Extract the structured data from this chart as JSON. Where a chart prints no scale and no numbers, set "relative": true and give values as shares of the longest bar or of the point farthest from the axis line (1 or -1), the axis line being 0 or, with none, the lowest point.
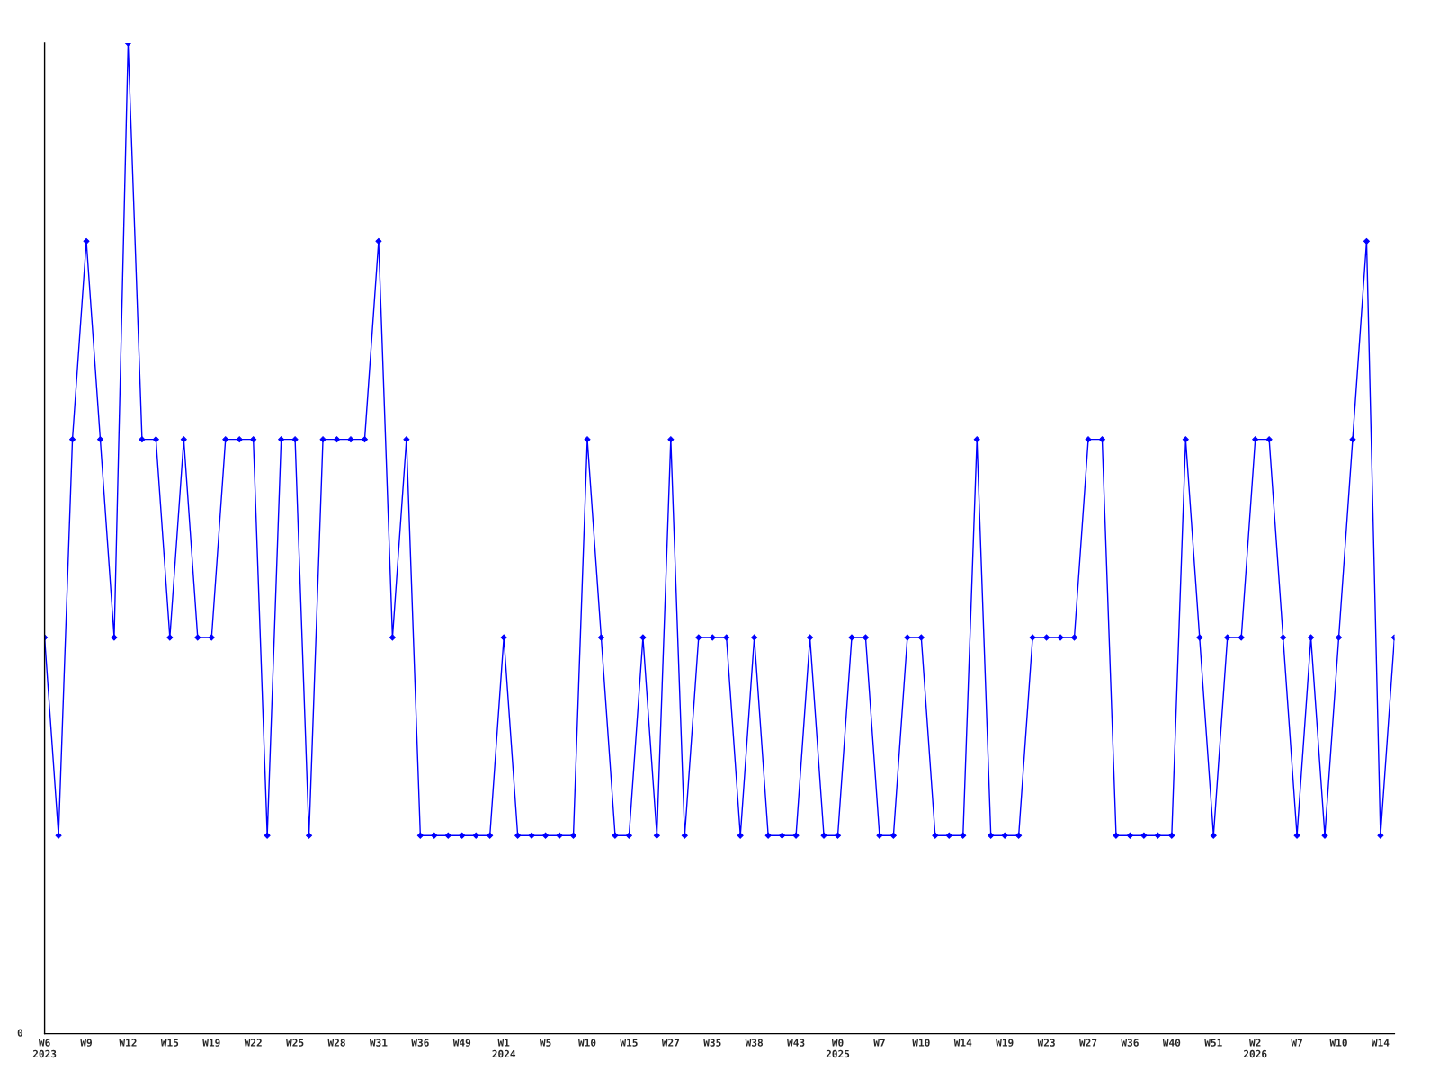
{
  "chart_data": {
    "type": "line",
    "relative": true,
    "categories": [
      "W6\n2023",
      null,
      null,
      "W9",
      null,
      null,
      "W12",
      null,
      null,
      "W15",
      null,
      null,
      "W19",
      null,
      null,
      "W22",
      null,
      null,
      "W25",
      null,
      null,
      "W28",
      null,
      null,
      "W31",
      null,
      null,
      "W36",
      null,
      null,
      "W49",
      null,
      null,
      "W1\n2024",
      null,
      null,
      "W5",
      null,
      null,
      "W10",
      null,
      null,
      "W15",
      null,
      null,
      "W27",
      null,
      null,
      "W35",
      null,
      null,
      "W38",
      null,
      null,
      "W43",
      null,
      null,
      "W0\n2025",
      null,
      null,
      "W7",
      null,
      null,
      "W10",
      null,
      null,
      "W14",
      null,
      null,
      "W19",
      null,
      null,
      "W23",
      null,
      null,
      "W27",
      null,
      null,
      "W36",
      null,
      null,
      "W40",
      null,
      null,
      "W51",
      null,
      null,
      "W2\n2026",
      null,
      null,
      "W7",
      null,
      null,
      "W10",
      null,
      null,
      "W14",
      null
    ],
    "series": [
      {
        "color": "#0000ff",
        "values": [
          0.4,
          0.2,
          0.6,
          0.8,
          0.6,
          0.4,
          1.0,
          0.6,
          0.6,
          0.4,
          0.6,
          0.4,
          0.4,
          0.6,
          0.6,
          0.6,
          0.2,
          0.6,
          0.6,
          0.2,
          0.6,
          0.6,
          0.6,
          0.6,
          0.8,
          0.4,
          0.6,
          0.2,
          0.2,
          0.2,
          0.2,
          0.2,
          0.2,
          0.4,
          0.2,
          0.2,
          0.2,
          0.2,
          0.2,
          0.6,
          0.4,
          0.2,
          0.2,
          0.4,
          0.2,
          0.6,
          0.2,
          0.4,
          0.4,
          0.4,
          0.2,
          0.4,
          0.2,
          0.2,
          0.2,
          0.4,
          0.2,
          0.2,
          0.4,
          0.4,
          0.2,
          0.2,
          0.4,
          0.4,
          0.2,
          0.2,
          0.2,
          0.6,
          0.2,
          0.2,
          0.2,
          0.4,
          0.4,
          0.4,
          0.4,
          0.6,
          0.6,
          0.2,
          0.2,
          0.2,
          0.2,
          0.2,
          0.6,
          0.4,
          0.2,
          0.4,
          0.4,
          0.6,
          0.6,
          0.4,
          0.2,
          0.4,
          0.2,
          0.4,
          0.6,
          0.8,
          0.2,
          0.4
        ]
      }
    ],
    "annotations": [
      "0"
    ],
    "marker": "diamond",
    "line_style": "solid",
    "grid": false,
    "legend": false
  }
}
